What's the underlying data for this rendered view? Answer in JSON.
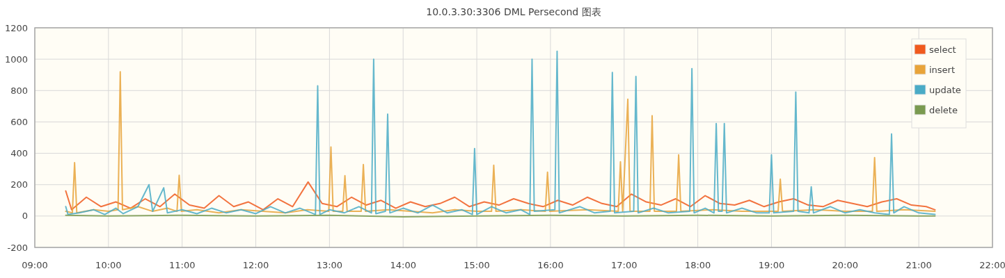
{
  "chart_data": {
    "type": "line",
    "title": "10.0.3.30:3306 DML Persecond 图表",
    "xlim": [
      9,
      22
    ],
    "ylim": [
      -200,
      1200
    ],
    "xticks": [
      {
        "value": 9,
        "label": "09:00"
      },
      {
        "value": 10,
        "label": "10:00"
      },
      {
        "value": 11,
        "label": "11:00"
      },
      {
        "value": 12,
        "label": "12:00"
      },
      {
        "value": 13,
        "label": "13:00"
      },
      {
        "value": 14,
        "label": "14:00"
      },
      {
        "value": 15,
        "label": "15:00"
      },
      {
        "value": 16,
        "label": "16:00"
      },
      {
        "value": 17,
        "label": "17:00"
      },
      {
        "value": 18,
        "label": "18:00"
      },
      {
        "value": 19,
        "label": "19:00"
      },
      {
        "value": 20,
        "label": "20:00"
      },
      {
        "value": 21,
        "label": "21:00"
      },
      {
        "value": 22,
        "label": "22:00"
      }
    ],
    "yticks": [
      -200,
      0,
      200,
      400,
      600,
      800,
      1000,
      1200
    ],
    "grid": true,
    "legend": "top right",
    "series": [
      {
        "name": "select",
        "color": "#f05a1e",
        "x": [
          9.42,
          9.5,
          9.7,
          9.9,
          10.1,
          10.3,
          10.5,
          10.7,
          10.9,
          11.1,
          11.3,
          11.5,
          11.7,
          11.9,
          12.1,
          12.3,
          12.5,
          12.71,
          12.9,
          13.1,
          13.3,
          13.5,
          13.7,
          13.9,
          14.1,
          14.3,
          14.5,
          14.7,
          14.9,
          15.1,
          15.3,
          15.5,
          15.7,
          15.9,
          16.1,
          16.3,
          16.5,
          16.7,
          16.9,
          17.1,
          17.3,
          17.5,
          17.7,
          17.9,
          18.1,
          18.3,
          18.5,
          18.7,
          18.9,
          19.1,
          19.3,
          19.5,
          19.7,
          19.9,
          20.1,
          20.3,
          20.5,
          20.7,
          20.9,
          21.1,
          21.22
        ],
        "values": [
          160,
          40,
          120,
          60,
          90,
          50,
          110,
          60,
          140,
          70,
          50,
          130,
          60,
          90,
          40,
          110,
          60,
          217,
          80,
          60,
          120,
          70,
          100,
          50,
          90,
          60,
          80,
          120,
          60,
          90,
          70,
          110,
          80,
          60,
          100,
          70,
          120,
          80,
          60,
          140,
          90,
          70,
          110,
          60,
          130,
          80,
          70,
          100,
          60,
          90,
          110,
          70,
          60,
          100,
          80,
          60,
          90,
          110,
          70,
          60,
          40
        ]
      },
      {
        "name": "insert",
        "color": "#e8a33a",
        "x": [
          9.42,
          9.51,
          9.54,
          9.57,
          9.8,
          10.0,
          10.13,
          10.16,
          10.19,
          10.4,
          10.6,
          10.8,
          10.93,
          10.96,
          10.99,
          11.2,
          11.5,
          11.8,
          12.1,
          12.4,
          12.7,
          12.99,
          13.02,
          13.05,
          13.18,
          13.21,
          13.24,
          13.43,
          13.46,
          13.49,
          13.8,
          14.1,
          14.4,
          14.7,
          15.0,
          15.2,
          15.23,
          15.26,
          15.6,
          15.93,
          15.96,
          15.99,
          16.5,
          16.92,
          16.95,
          16.98,
          17.05,
          17.08,
          17.35,
          17.38,
          17.41,
          17.71,
          17.74,
          17.77,
          18.2,
          18.6,
          19.09,
          19.12,
          19.15,
          19.6,
          20.0,
          20.37,
          20.4,
          20.43,
          20.8,
          21.22
        ],
        "values": [
          30,
          20,
          340,
          20,
          40,
          30,
          40,
          920,
          40,
          60,
          30,
          50,
          30,
          260,
          30,
          40,
          20,
          40,
          30,
          20,
          40,
          30,
          440,
          30,
          30,
          257,
          30,
          30,
          328,
          30,
          40,
          30,
          20,
          40,
          30,
          30,
          324,
          30,
          40,
          30,
          280,
          30,
          40,
          30,
          346,
          30,
          745,
          30,
          30,
          640,
          30,
          30,
          390,
          30,
          40,
          30,
          30,
          235,
          30,
          40,
          30,
          30,
          373,
          30,
          40,
          30
        ]
      },
      {
        "name": "update",
        "color": "#4aabc6",
        "x": [
          9.42,
          9.45,
          9.6,
          9.8,
          9.95,
          10.1,
          10.2,
          10.4,
          10.55,
          10.6,
          10.75,
          10.8,
          11.0,
          11.2,
          11.4,
          11.6,
          11.8,
          12.0,
          12.2,
          12.4,
          12.6,
          12.81,
          12.84,
          12.87,
          13.0,
          13.2,
          13.4,
          13.57,
          13.6,
          13.63,
          13.76,
          13.79,
          13.82,
          14.0,
          14.2,
          14.4,
          14.6,
          14.8,
          14.94,
          14.97,
          15.0,
          15.2,
          15.4,
          15.6,
          15.72,
          15.75,
          15.78,
          16.06,
          16.09,
          16.12,
          16.4,
          16.6,
          16.81,
          16.84,
          16.87,
          17.13,
          17.16,
          17.19,
          17.4,
          17.6,
          17.89,
          17.92,
          17.95,
          18.1,
          18.22,
          18.25,
          18.28,
          18.33,
          18.36,
          18.39,
          18.6,
          18.8,
          18.97,
          19.0,
          19.03,
          19.3,
          19.33,
          19.36,
          19.51,
          19.54,
          19.57,
          19.8,
          20.0,
          20.2,
          20.4,
          20.6,
          20.63,
          20.66,
          20.8,
          21.0,
          21.22
        ],
        "values": [
          60,
          10,
          20,
          40,
          10,
          50,
          15,
          60,
          200,
          30,
          180,
          20,
          40,
          15,
          50,
          20,
          40,
          15,
          60,
          20,
          50,
          10,
          830,
          10,
          40,
          20,
          60,
          20,
          1000,
          15,
          30,
          650,
          20,
          50,
          20,
          70,
          20,
          40,
          10,
          430,
          10,
          60,
          20,
          40,
          10,
          1000,
          30,
          40,
          1050,
          20,
          60,
          20,
          30,
          915,
          20,
          30,
          890,
          20,
          50,
          20,
          30,
          940,
          20,
          50,
          20,
          590,
          30,
          30,
          590,
          20,
          50,
          20,
          20,
          390,
          20,
          30,
          790,
          30,
          20,
          186,
          20,
          60,
          20,
          40,
          20,
          10,
          523,
          20,
          60,
          20,
          10
        ]
      },
      {
        "name": "delete",
        "color": "#7a9a50",
        "x": [
          9.42,
          10,
          11,
          12,
          13,
          14,
          15,
          16,
          17,
          18,
          19,
          20,
          21,
          21.22
        ],
        "values": [
          5,
          0,
          5,
          0,
          5,
          -5,
          0,
          5,
          0,
          5,
          0,
          5,
          0,
          0
        ]
      }
    ]
  }
}
